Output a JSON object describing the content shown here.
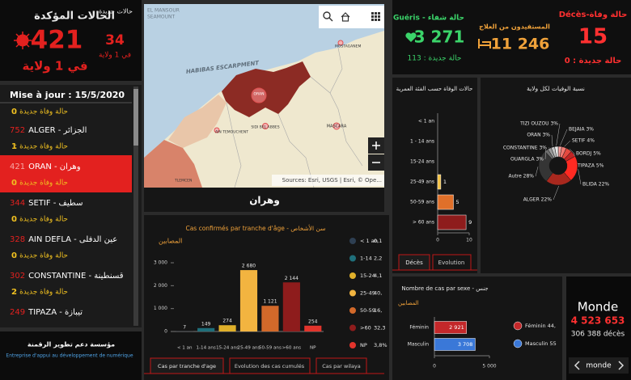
{
  "header": {
    "confirmed_label": "الحالات المؤكدة",
    "confirmed": "421",
    "confirmed_scope": "في 1 ولاية",
    "new_label": "حالات جديدة",
    "new": "34",
    "new_scope": "في 1 ولاية"
  },
  "wilaya_list": {
    "updated": "Mise à jour : 15/5/2020",
    "death_label": "حالة وفاة جديدة :",
    "items": [
      {
        "new_deaths": "0"
      },
      {
        "cases": "752",
        "name": "ALGER - الجزائر",
        "new_deaths": "1"
      },
      {
        "cases": "421",
        "name": "ORAN - وهران",
        "new_deaths": "0",
        "selected": true
      },
      {
        "cases": "344",
        "name": "SETIF - سطيف",
        "new_deaths": "0"
      },
      {
        "cases": "328",
        "name": "AIN DEFLA - عين الدفلى",
        "new_deaths": "0"
      },
      {
        "cases": "302",
        "name": "CONSTANTINE - قسنطينة",
        "new_deaths": "2"
      },
      {
        "cases": "249",
        "name": "TIPAZA - تيبازة"
      }
    ]
  },
  "footer": {
    "title": "مؤسسة دعم تطوير الرقمنة",
    "subtitle": "Entreprise d'appui au développement de numérique"
  },
  "map": {
    "labels": [
      "EL MANSOUR",
      "SEAMOUNT",
      "HABIBAS ESCARPMENT",
      "MOSTAGANEM",
      "ORAN",
      "AIN TEMOUCHENT",
      "SIDI BEL ABBES",
      "MASCARA",
      "TLEMCEN"
    ],
    "attribution": "Sources: Esri, USGS | Esri, © Ope...",
    "caption": "وهران"
  },
  "stats": {
    "recovered_label": "Guéris - حالة شفاء",
    "recovered": "3 271",
    "recovered_new": "حالة جديدة : 113",
    "treated_label": "المستفيدون من العلاج",
    "treated": "11 246",
    "deaths_label": "Décès-حالة وفاة",
    "deaths": "15",
    "deaths_new": "حالة جديدة : 0"
  },
  "world": {
    "title": "Monde",
    "cases": "4 523 653",
    "deaths": "306 388 décès",
    "nav": "monde"
  },
  "tabs": {
    "age": [
      "Cas par tranche d'age",
      "Evolution des cas cumulés",
      "Cas par wilaya"
    ],
    "deaths": [
      "Décès",
      "Evolution"
    ]
  },
  "chart_data": [
    {
      "type": "bar",
      "title": "Cas confirmés par tranche d'âge - سن الأشخاص",
      "axis_label": "المصابين",
      "categories": [
        "< 1 an",
        "1-14 ans",
        "15-24 ans",
        "25-49 ans",
        "50-59 ans",
        ">60 ans",
        "NP"
      ],
      "values": [
        7,
        149,
        274,
        2680,
        1121,
        2144,
        254
      ],
      "value_labels": [
        "7",
        "149",
        "274",
        "2 680",
        "1 121",
        "2 144",
        "254"
      ],
      "colors": [
        "#2e3f52",
        "#1f6f7a",
        "#e0b02a",
        "#f2b440",
        "#d2692a",
        "#8e1c1c",
        "#e2342c"
      ],
      "ylim": [
        0,
        3000
      ],
      "yticks": [
        0,
        {
          "value": 1000,
          "label": "1 000"
        },
        {
          "value": 2000,
          "label": "2 000"
        },
        {
          "value": 3000,
          "label": "3 000"
        }
      ],
      "legend": [
        {
          "label": "< 1 an",
          "share": "0,1"
        },
        {
          "label": "1-14",
          "share": "2,2"
        },
        {
          "label": "15-24",
          "share": "4,1"
        },
        {
          "label": "25-49",
          "share": "40,"
        },
        {
          "label": "50-59",
          "share": "16,"
        },
        {
          "label": ">60",
          "share": "32,3"
        },
        {
          "label": "NP",
          "share": "3,8%"
        }
      ]
    },
    {
      "type": "hbar",
      "title": "حالات الوفاة حسب الفئة العمرية",
      "categories": [
        "< 1 an",
        "1 - 14 ans",
        "15-24 ans",
        "25-49 ans",
        "50-59 ans",
        "> 60 ans"
      ],
      "values": [
        0,
        0,
        0,
        1,
        5,
        9
      ],
      "colors": [
        "#2e3f52",
        "#1f6f7a",
        "#e0b02a",
        "#f2c040",
        "#e0702a",
        "#8e1c1c"
      ],
      "xlim": [
        0,
        10
      ],
      "xticks": [
        0,
        10
      ]
    },
    {
      "type": "pie",
      "title": "نسبة الوفيات لكل ولاية",
      "values": [
        3,
        4,
        5,
        5,
        22,
        22,
        28,
        3,
        3,
        3,
        3
      ],
      "value_labels": [
        "BEJAIA 3%",
        "SETIF 4%",
        "BORDJ 5%",
        "TIPAZA 5%",
        "BLIDA 22%",
        "ALGER 22%",
        "Autre 28%",
        "OUARGLA 3%",
        "CONSTANTINE 3%",
        "ORAN 3%",
        "TIZI OUZOU 3%"
      ],
      "colors": [
        "#f5a3a0",
        "#f07a72",
        "#e44a40",
        "#c22424",
        "#ff2a22",
        "#a8281e",
        "#353535",
        "#6e6e6e",
        "#9a9a9a",
        "#c4c4c4",
        "#e8e8e8"
      ]
    },
    {
      "type": "hbar",
      "title": "Nombre de cas par sexe - جنس",
      "axis_label": "المصابين",
      "categories": [
        "Féminin",
        "Masculin"
      ],
      "values": [
        2921,
        3708
      ],
      "value_labels": [
        "2 921",
        "3 708"
      ],
      "colors": [
        "#c4282a",
        "#3a78d8"
      ],
      "xlim": [
        0,
        5000
      ],
      "xticks": [
        0,
        {
          "value": 5000,
          "label": "5 000"
        }
      ],
      "legend": [
        "Féminin 44,",
        "Masculin 55"
      ]
    }
  ]
}
